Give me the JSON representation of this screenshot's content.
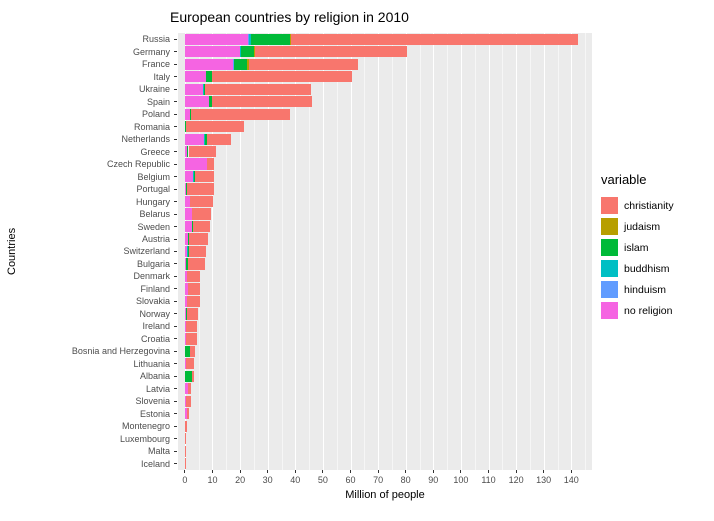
{
  "chart_data": {
    "type": "bar",
    "orientation": "horizontal",
    "stacked": true,
    "title": "European countries by religion in 2010",
    "xlabel": "Million of people",
    "ylabel": "Countries",
    "legend_title": "variable",
    "legend_position": "right",
    "grid": true,
    "panel_background": "#EBEBEB",
    "xlim": [
      -2.5,
      147.5
    ],
    "x_ticks": [
      0,
      10,
      20,
      30,
      40,
      50,
      60,
      70,
      80,
      90,
      100,
      110,
      120,
      130,
      140
    ],
    "stack_order_note": "bars stack left-to-right in reverse legend order",
    "categories": [
      "Russia",
      "Germany",
      "France",
      "Italy",
      "Ukraine",
      "Spain",
      "Poland",
      "Romania",
      "Netherlands",
      "Greece",
      "Czech Republic",
      "Belgium",
      "Portugal",
      "Hungary",
      "Belarus",
      "Sweden",
      "Austria",
      "Switzerland",
      "Bulgaria",
      "Denmark",
      "Finland",
      "Slovakia",
      "Norway",
      "Ireland",
      "Croatia",
      "Bosnia and Herzegovina",
      "Lithuania",
      "Albania",
      "Latvia",
      "Slovenia",
      "Estonia",
      "Montenegro",
      "Luxembourg",
      "Malta",
      "Iceland"
    ],
    "series": [
      {
        "name": "christianity",
        "color": "#F8766D",
        "values": [
          104.1,
          55.2,
          39.6,
          50.6,
          38.4,
          36.2,
          36.1,
          21.2,
          8.4,
          10.0,
          2.4,
          6.9,
          9.8,
          8.1,
          6.7,
          6.3,
          6.8,
          6.4,
          6.1,
          4.6,
          4.4,
          4.6,
          4.1,
          4.1,
          4.0,
          2.0,
          3.0,
          0.6,
          1.25,
          1.6,
          0.53,
          0.49,
          0.36,
          0.4,
          0.3
        ]
      },
      {
        "name": "judaism",
        "color": "#B79F00",
        "values": [
          0.2,
          0.3,
          0.5,
          0.03,
          0.1,
          0.05,
          0.01,
          0.01,
          0.03,
          0.005,
          0.004,
          0.03,
          0.003,
          0.1,
          0.01,
          0.01,
          0.01,
          0.02,
          0.002,
          0.01,
          0.001,
          0.002,
          0.001,
          0.002,
          0.001,
          0.001,
          0.003,
          0,
          0.006,
          0,
          0.002,
          0,
          0.001,
          0,
          0
        ]
      },
      {
        "name": "islam",
        "color": "#00BA38",
        "values": [
          14.3,
          4.8,
          4.7,
          2.2,
          0.5,
          1.0,
          0.05,
          0.07,
          1.0,
          0.6,
          0.004,
          0.6,
          0.06,
          0.03,
          0.02,
          0.43,
          0.45,
          0.43,
          1.0,
          0.23,
          0.04,
          0.002,
          0.18,
          0.05,
          0.06,
          1.7,
          0.003,
          2.6,
          0.002,
          0.07,
          0.003,
          0.12,
          0.01,
          0.001,
          0.001
        ]
      },
      {
        "name": "buddhism",
        "color": "#00BFC4",
        "values": [
          0.7,
          0.3,
          0.3,
          0.1,
          0.05,
          0.03,
          0.01,
          0,
          0.04,
          0,
          0.006,
          0.03,
          0.06,
          0.01,
          0,
          0.03,
          0.01,
          0.03,
          0,
          0.01,
          0.005,
          0,
          0.03,
          0.01,
          0,
          0,
          0.001,
          0,
          0,
          0,
          0,
          0,
          0.001,
          0,
          0.001
        ]
      },
      {
        "name": "hinduism",
        "color": "#619CFF",
        "values": [
          0.1,
          0.1,
          0.03,
          0.1,
          0,
          0.02,
          0,
          0,
          0.1,
          0,
          0,
          0.01,
          0,
          0,
          0,
          0.01,
          0.01,
          0.03,
          0,
          0.01,
          0,
          0,
          0.005,
          0.01,
          0,
          0,
          0,
          0,
          0,
          0,
          0,
          0,
          0,
          0,
          0
        ]
      },
      {
        "name": "no religion",
        "color": "#F564E2",
        "values": [
          23.0,
          19.9,
          17.6,
          7.5,
          6.7,
          8.7,
          2.0,
          0.2,
          7.0,
          0.7,
          8.0,
          3.1,
          0.5,
          1.8,
          2.7,
          2.5,
          1.1,
          0.9,
          0.3,
          0.65,
          0.95,
          0.8,
          0.5,
          0.28,
          0.22,
          0.1,
          0.33,
          0.05,
          0.98,
          0.37,
          0.79,
          0.02,
          0.14,
          0.01,
          0.01
        ]
      }
    ]
  }
}
